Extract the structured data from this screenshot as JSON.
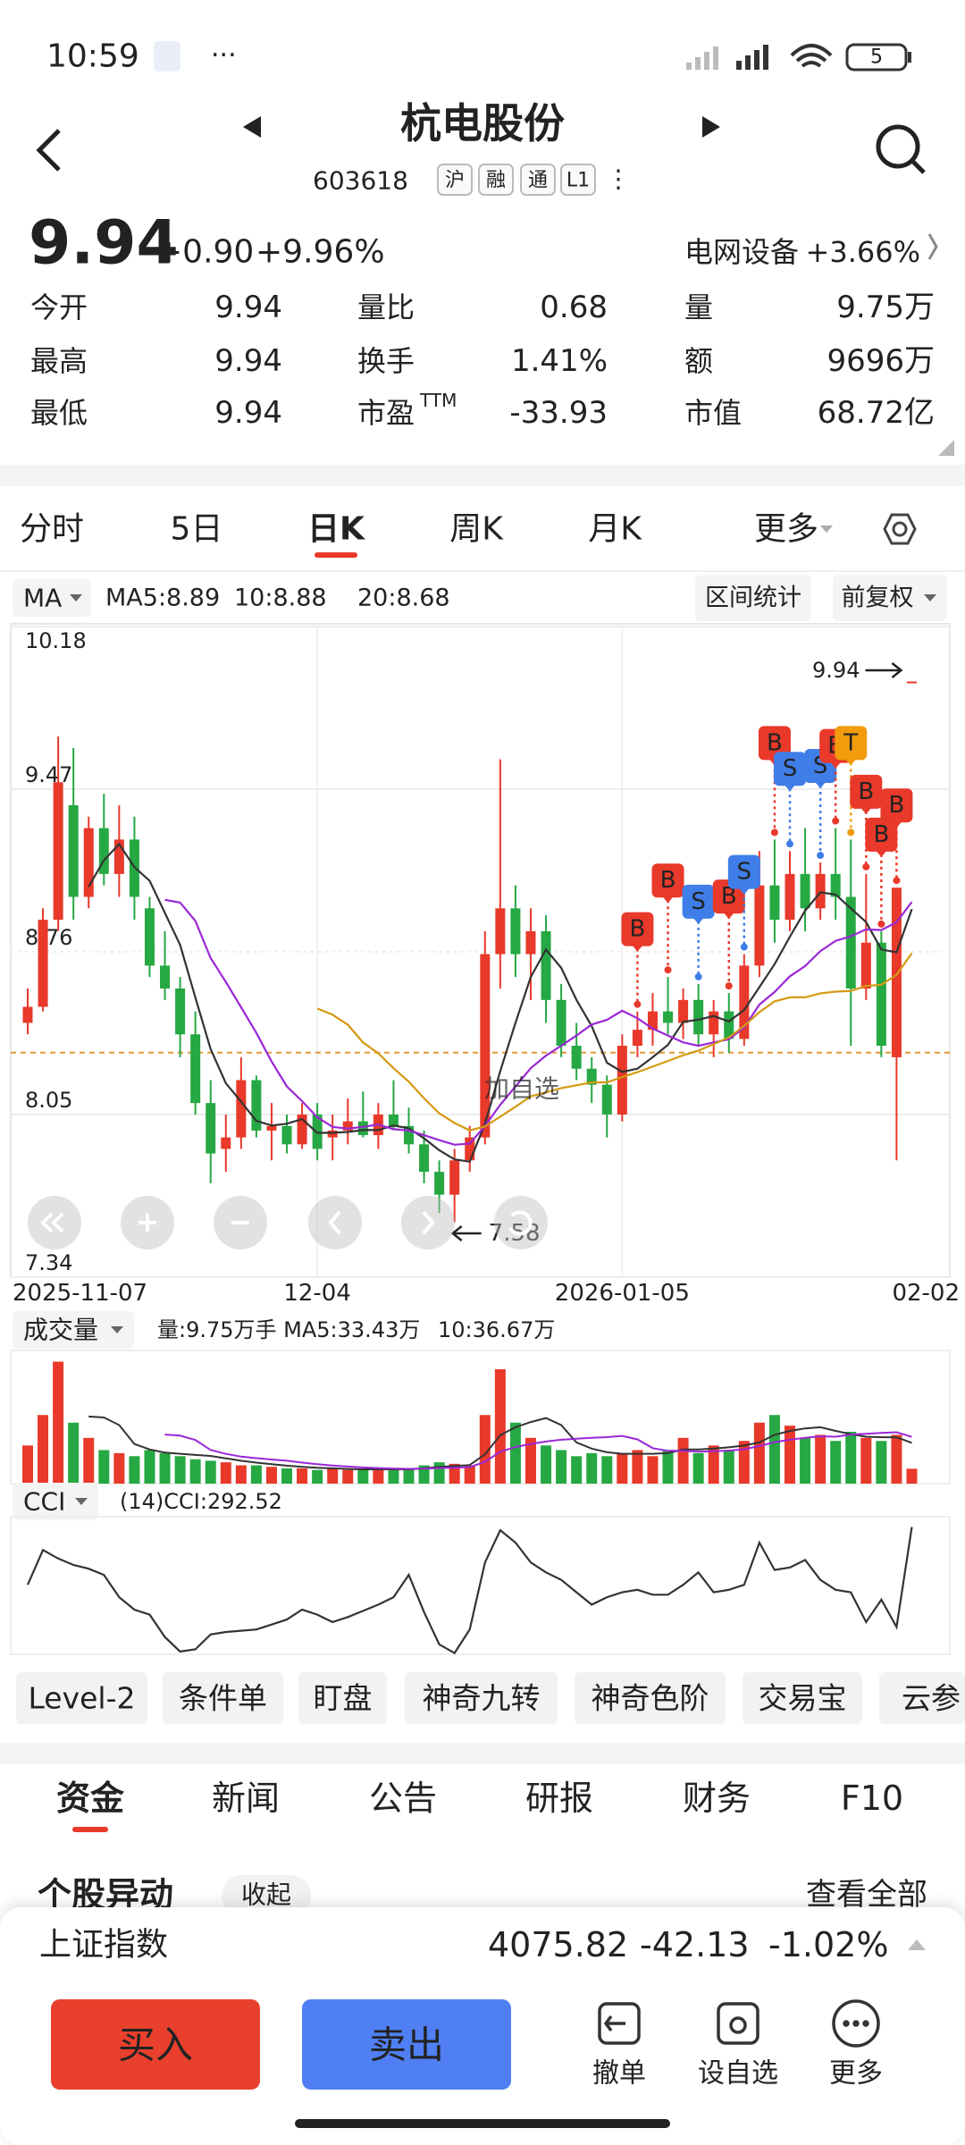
{
  "status_bar": {
    "time": "10:59",
    "battery": "5"
  },
  "header": {
    "title": "杭电股份",
    "code": "603618",
    "tags": [
      "沪",
      "融",
      "通",
      "L1"
    ]
  },
  "quote": {
    "price": "9.94",
    "change": "+0.90",
    "change_pct": "+9.96%",
    "sector": "电网设备",
    "sector_pct": "+3.66%"
  },
  "stats": [
    [
      "今开",
      "9.94",
      "量比",
      "0.68",
      "量",
      "9.75万"
    ],
    [
      "最高",
      "9.94",
      "换手",
      "1.41%",
      "额",
      "9696万"
    ],
    [
      "最低",
      "9.94",
      "市盈",
      "-33.93",
      "市值",
      "68.72亿"
    ]
  ],
  "pe_sup": "TTM",
  "period_tabs": {
    "items": [
      "分时",
      "5日",
      "日K",
      "周K",
      "月K"
    ],
    "active": 2,
    "more": "更多"
  },
  "ma_legend": {
    "selector": "MA",
    "items": [
      "MA5:8.89",
      "10:8.88",
      "20:8.68"
    ],
    "buttons": [
      "区间统计",
      "前复权"
    ]
  },
  "chart_data": {
    "type": "candlestick",
    "candles": [
      [
        8.45,
        8.6,
        8.4,
        8.52
      ],
      [
        8.52,
        8.95,
        8.5,
        8.9
      ],
      [
        8.9,
        9.7,
        8.85,
        9.5
      ],
      [
        9.4,
        9.65,
        8.9,
        9.0
      ],
      [
        9.0,
        9.35,
        8.95,
        9.3
      ],
      [
        9.3,
        9.45,
        9.05,
        9.1
      ],
      [
        9.1,
        9.4,
        9.0,
        9.25
      ],
      [
        9.25,
        9.35,
        8.9,
        9.0
      ],
      [
        8.95,
        9.0,
        8.65,
        8.7
      ],
      [
        8.7,
        8.85,
        8.55,
        8.6
      ],
      [
        8.6,
        8.65,
        8.3,
        8.4
      ],
      [
        8.4,
        8.5,
        8.05,
        8.1
      ],
      [
        8.1,
        8.2,
        7.75,
        7.88
      ],
      [
        7.9,
        8.05,
        7.8,
        7.95
      ],
      [
        7.95,
        8.3,
        7.9,
        8.2
      ],
      [
        8.2,
        8.22,
        7.95,
        7.98
      ],
      [
        7.98,
        8.1,
        7.85,
        8.0
      ],
      [
        8.0,
        8.05,
        7.88,
        7.92
      ],
      [
        7.92,
        8.1,
        7.9,
        8.05
      ],
      [
        8.05,
        8.1,
        7.85,
        7.9
      ],
      [
        7.95,
        8.05,
        7.85,
        7.98
      ],
      [
        7.98,
        8.12,
        7.92,
        8.02
      ],
      [
        8.02,
        8.15,
        7.95,
        7.96
      ],
      [
        7.96,
        8.1,
        7.9,
        8.05
      ],
      [
        8.05,
        8.2,
        7.98,
        8.0
      ],
      [
        8.0,
        8.08,
        7.88,
        7.92
      ],
      [
        7.92,
        7.98,
        7.75,
        7.8
      ],
      [
        7.8,
        7.85,
        7.62,
        7.7
      ],
      [
        7.7,
        7.9,
        7.58,
        7.85
      ],
      [
        7.85,
        8.0,
        7.8,
        7.95
      ],
      [
        7.95,
        8.85,
        7.92,
        8.75
      ],
      [
        8.75,
        9.6,
        8.6,
        8.95
      ],
      [
        8.95,
        9.05,
        8.65,
        8.75
      ],
      [
        8.75,
        8.95,
        8.55,
        8.85
      ],
      [
        8.85,
        8.92,
        8.45,
        8.55
      ],
      [
        8.55,
        8.62,
        8.3,
        8.35
      ],
      [
        8.35,
        8.45,
        8.2,
        8.25
      ],
      [
        8.25,
        8.3,
        8.1,
        8.18
      ],
      [
        8.18,
        8.22,
        7.95,
        8.05
      ],
      [
        8.05,
        8.4,
        8.02,
        8.35
      ],
      [
        8.35,
        8.5,
        8.3,
        8.42
      ],
      [
        8.42,
        8.58,
        8.35,
        8.5
      ],
      [
        8.5,
        8.65,
        8.4,
        8.45
      ],
      [
        8.45,
        8.6,
        8.38,
        8.55
      ],
      [
        8.55,
        8.62,
        8.35,
        8.4
      ],
      [
        8.4,
        8.55,
        8.3,
        8.5
      ],
      [
        8.5,
        8.58,
        8.32,
        8.38
      ],
      [
        8.38,
        8.75,
        8.35,
        8.7
      ],
      [
        8.7,
        9.2,
        8.65,
        9.05
      ],
      [
        9.05,
        9.25,
        8.8,
        8.9
      ],
      [
        8.9,
        9.2,
        8.85,
        9.1
      ],
      [
        9.1,
        9.3,
        8.85,
        8.95
      ],
      [
        8.95,
        9.15,
        8.9,
        9.1
      ],
      [
        9.1,
        9.3,
        8.9,
        9.0
      ],
      [
        9.0,
        9.25,
        8.35,
        8.6
      ],
      [
        8.6,
        9.1,
        8.55,
        8.8
      ],
      [
        8.8,
        8.85,
        8.3,
        8.35
      ],
      [
        8.3,
        9.04,
        7.85,
        9.04
      ],
      [
        9.94,
        9.94,
        9.94,
        9.94
      ]
    ],
    "ylim": [
      7.34,
      10.18
    ],
    "yticks": [
      10.18,
      9.47,
      8.76,
      8.05,
      7.34
    ],
    "ref_line": 8.32,
    "x_labels": [
      "2025-11-07",
      "12-04",
      "2026-01-05",
      "02-02"
    ],
    "x_label_index": [
      0,
      19,
      39,
      58
    ],
    "high_label": {
      "value": 9.94,
      "candle": 58
    },
    "low_label": {
      "value": 7.58,
      "candle": 28
    },
    "watermark": "加自选",
    "colors": {
      "up": "#e8392a",
      "down": "#26a843",
      "ma5": "#333333",
      "ma10": "#9b27d6",
      "ma20": "#d49a12"
    },
    "signals": [
      {
        "candle": 40,
        "label": "B"
      },
      {
        "candle": 42,
        "label": "B"
      },
      {
        "candle": 44,
        "label": "S"
      },
      {
        "candle": 46,
        "label": "B"
      },
      {
        "candle": 47,
        "label": "S"
      },
      {
        "candle": 49,
        "label": "B"
      },
      {
        "candle": 50,
        "label": "S"
      },
      {
        "candle": 52,
        "label": "S"
      },
      {
        "candle": 53,
        "label": "B"
      },
      {
        "candle": 54,
        "label": "T"
      },
      {
        "candle": 55,
        "label": "B"
      },
      {
        "candle": 56,
        "label": "B"
      },
      {
        "candle": 57,
        "label": "B"
      }
    ],
    "signal_colors": {
      "B": "#e8392a",
      "S": "#3f7ee8",
      "T": "#f29b0c"
    }
  },
  "volume": {
    "title": "成交量",
    "legend": "量:9.75万手 MA5:33.43万",
    "legend2": "10:36.67万",
    "ylim": [
      0,
      85
    ],
    "values": [
      25,
      45,
      80,
      40,
      30,
      22,
      20,
      18,
      22,
      20,
      18,
      16,
      15,
      14,
      12,
      12,
      11,
      10,
      10,
      9,
      10,
      9,
      9,
      10,
      9,
      10,
      12,
      14,
      13,
      12,
      45,
      75,
      40,
      30,
      25,
      22,
      18,
      20,
      18,
      20,
      22,
      18,
      22,
      30,
      20,
      25,
      22,
      28,
      40,
      45,
      38,
      30,
      32,
      28,
      34,
      30,
      28,
      32,
      9.75
    ]
  },
  "cci": {
    "title": "CCI",
    "legend": "(14)CCI:292.52",
    "ylim": [
      -220,
      320
    ],
    "values": [
      60,
      200,
      166,
      140,
      125,
      100,
      10,
      -40,
      -60,
      -150,
      -209,
      -200,
      -140,
      -130,
      -125,
      -120,
      -100,
      -80,
      -40,
      -60,
      -90,
      -70,
      -45,
      -20,
      10,
      100,
      -50,
      -180,
      -215,
      -120,
      150,
      280,
      230,
      150,
      110,
      80,
      30,
      -20,
      10,
      30,
      40,
      20,
      20,
      60,
      110,
      30,
      40,
      60,
      230,
      120,
      130,
      160,
      80,
      40,
      30,
      -90,
      0,
      -110,
      292.52
    ]
  },
  "tools": [
    "Level-2",
    "条件单",
    "盯盘",
    "神奇九转",
    "神奇色阶",
    "交易宝",
    "云参"
  ],
  "news_tabs": {
    "items": [
      "资金",
      "新闻",
      "公告",
      "研报",
      "财务",
      "F10"
    ],
    "active": 0
  },
  "section": {
    "title": "个股异动",
    "toggle": "收起",
    "more": "查看全部"
  },
  "index_bar": {
    "name": "上证指数",
    "value": "4075.82",
    "change": "-42.13",
    "change_pct": "-1.02%"
  },
  "actions": {
    "buy": "买入",
    "sell": "卖出",
    "items": [
      "撤单",
      "设自选",
      "更多"
    ]
  }
}
